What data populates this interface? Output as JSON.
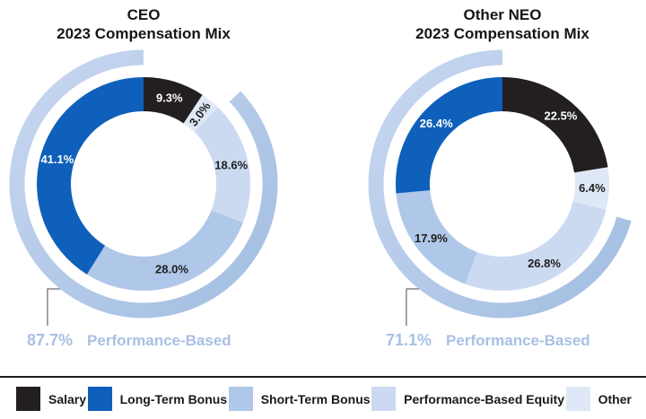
{
  "colors": {
    "salary": "#231F20",
    "long_term_bonus": "#0F60BA",
    "short_term_bonus": "#AFC7E8",
    "performance_based_equity": "#CCDAF1",
    "other": "#DFE8F6",
    "outer_arc_light": "#C8D7F0",
    "outer_arc_dark": "#A2BEE2",
    "caption_text": "#A9C0E4",
    "label_on_dark": "#FFFFFF",
    "label_on_light": "#1E1E1E",
    "leader_line": "#4A4A4A",
    "separator": "#1A1A1A"
  },
  "legend": {
    "items": [
      {
        "label": "Salary",
        "color": "#231F20"
      },
      {
        "label": "Long-Term Bonus",
        "color": "#0F60BA"
      },
      {
        "label": "Short-Term Bonus",
        "color": "#AFC7E8"
      },
      {
        "label": "Performance-Based Equity",
        "color": "#CCDAF1"
      },
      {
        "label": "Other",
        "color": "#DFE8F6"
      }
    ]
  },
  "chart_data": [
    {
      "type": "pie",
      "donut": true,
      "title": "CEO",
      "subtitle": "2023 Compensation Mix",
      "start_angle_deg": 0,
      "clockwise": true,
      "segments": [
        {
          "label": "Salary",
          "value": 9.3,
          "display": "9.3%",
          "color": "#231F20",
          "text_color": "#FFFFFF"
        },
        {
          "label": "Other",
          "value": 3.0,
          "display": "3.0%",
          "color": "#DFE8F6",
          "text_color": "#1E1E1E",
          "rotate": -53
        },
        {
          "label": "Performance-Based Equity",
          "value": 18.6,
          "display": "18.6%",
          "color": "#CCDAF1",
          "text_color": "#1E1E1E"
        },
        {
          "label": "Short-Term Bonus",
          "value": 28.0,
          "display": "28.0%",
          "color": "#AFC7E8",
          "text_color": "#1E1E1E"
        },
        {
          "label": "Long-Term Bonus",
          "value": 41.1,
          "display": "41.1%",
          "color": "#0F60BA",
          "text_color": "#FFFFFF"
        }
      ],
      "performance_based": {
        "value": "87.7%",
        "label": "Performance-Based",
        "span_pct": 87.7
      }
    },
    {
      "type": "pie",
      "donut": true,
      "title": "Other NEO",
      "subtitle": "2023 Compensation Mix",
      "start_angle_deg": 0,
      "clockwise": true,
      "segments": [
        {
          "label": "Salary",
          "value": 22.5,
          "display": "22.5%",
          "color": "#231F20",
          "text_color": "#FFFFFF"
        },
        {
          "label": "Other",
          "value": 6.4,
          "display": "6.4%",
          "color": "#DFE8F6",
          "text_color": "#1E1E1E"
        },
        {
          "label": "Performance-Based Equity",
          "value": 26.8,
          "display": "26.8%",
          "color": "#CCDAF1",
          "text_color": "#1E1E1E"
        },
        {
          "label": "Short-Term Bonus",
          "value": 17.9,
          "display": "17.9%",
          "color": "#AFC7E8",
          "text_color": "#1E1E1E"
        },
        {
          "label": "Long-Term Bonus",
          "value": 26.4,
          "display": "26.4%",
          "color": "#0F60BA",
          "text_color": "#FFFFFF"
        }
      ],
      "performance_based": {
        "value": "71.1%",
        "label": "Performance-Based",
        "span_pct": 71.1
      }
    }
  ]
}
